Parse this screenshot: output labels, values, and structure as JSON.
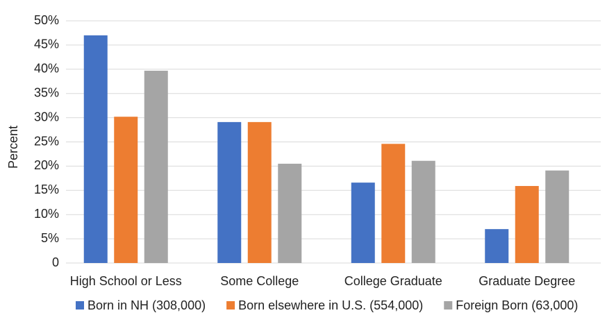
{
  "chart_data": {
    "type": "bar",
    "y_label": "Percent",
    "categories": [
      "High School or Less",
      "Some College",
      "College Graduate",
      "Graduate Degree"
    ],
    "series": [
      {
        "name": "Born in NH (308,000)",
        "color": "#4472c4",
        "values": [
          47.0,
          29.1,
          16.6,
          7.0
        ]
      },
      {
        "name": "Born elsewhere in U.S. (554,000)",
        "color": "#ed7d31",
        "values": [
          30.2,
          29.1,
          24.6,
          15.9
        ]
      },
      {
        "name": "Foreign Born (63,000)",
        "color": "#a5a5a5",
        "values": [
          39.7,
          20.5,
          21.1,
          19.1
        ]
      }
    ],
    "ylim": [
      0,
      50
    ],
    "yticks": [
      0,
      {
        "value": 5,
        "label": "5%"
      },
      {
        "value": 10,
        "label": "10%"
      },
      {
        "value": 15,
        "label": "15%"
      },
      {
        "value": 20,
        "label": "20%"
      },
      {
        "value": 25,
        "label": "25%"
      },
      {
        "value": 30,
        "label": "30%"
      },
      {
        "value": 35,
        "label": "35%"
      },
      {
        "value": 40,
        "label": "40%"
      },
      {
        "value": 45,
        "label": "45%"
      },
      {
        "value": 50,
        "label": "50%"
      }
    ],
    "grid": true,
    "legend": "bottom"
  }
}
